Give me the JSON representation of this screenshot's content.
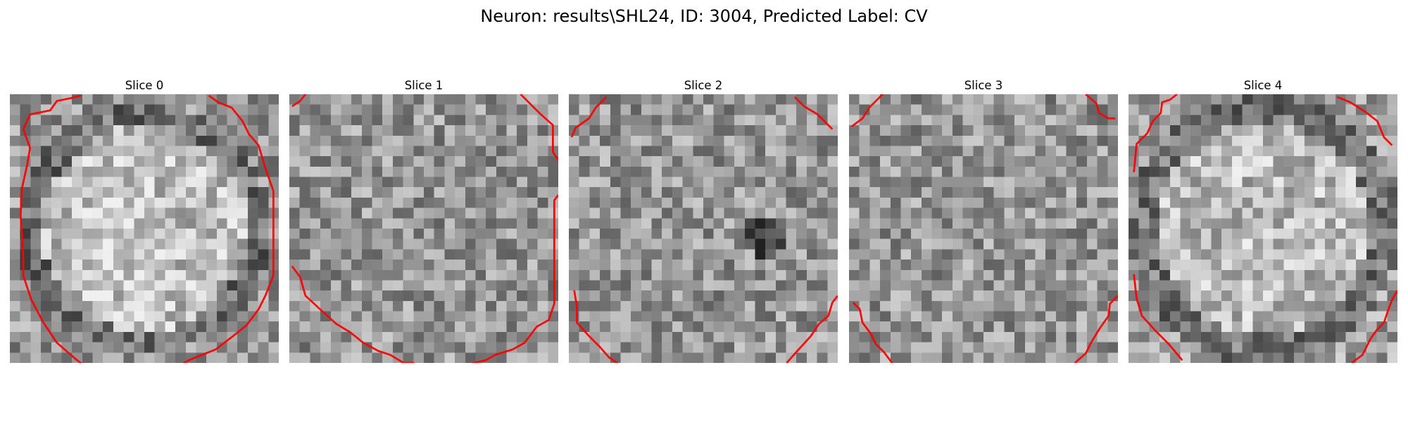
{
  "figure": {
    "title": "Neuron: results\\SHL24, ID: 3004, Predicted Label: CV"
  },
  "colors": {
    "contour": "#ff0000"
  },
  "panels": [
    {
      "title": "Slice 0",
      "seed": 11,
      "pattern": "ring",
      "contours": [
        [
          [
            1,
            2.6
          ],
          [
            1.5,
            1.5
          ],
          [
            3,
            1.2
          ],
          [
            3.5,
            0.5
          ],
          [
            4.5,
            0.3
          ],
          [
            5.3,
            0.1
          ]
        ],
        [
          [
            14.8,
            0.1
          ],
          [
            15.5,
            0.6
          ],
          [
            16.5,
            1
          ],
          [
            17.3,
            2
          ],
          [
            17.8,
            3
          ],
          [
            18.5,
            3.8
          ],
          [
            19,
            5.5
          ],
          [
            19.6,
            7.2
          ],
          [
            19.6,
            13.5
          ],
          [
            19,
            15
          ],
          [
            18.5,
            16
          ],
          [
            17.6,
            17.2
          ],
          [
            16.6,
            18
          ],
          [
            15.3,
            19
          ],
          [
            13.3,
            19.8
          ],
          [
            12,
            20.6
          ],
          [
            11,
            21.2
          ],
          [
            10,
            21.7
          ],
          [
            8,
            21.7
          ],
          [
            7,
            21.2
          ],
          [
            6,
            20.5
          ],
          [
            5,
            19.8
          ],
          [
            3.5,
            18.5
          ],
          [
            2.5,
            17
          ],
          [
            1.6,
            15.3
          ],
          [
            1,
            13.5
          ],
          [
            1,
            12
          ],
          [
            0.8,
            9
          ],
          [
            0.9,
            7
          ],
          [
            1.3,
            5.2
          ],
          [
            1.5,
            4
          ],
          [
            1,
            2.6
          ]
        ]
      ]
    },
    {
      "title": "Slice 1",
      "seed": 23,
      "pattern": "noise",
      "contours": [
        [
          [
            0.2,
            0.9
          ],
          [
            0.8,
            0.5
          ],
          [
            1.2,
            0
          ]
        ],
        [
          [
            17.2,
            0
          ],
          [
            18.6,
            1.4
          ],
          [
            19.6,
            2.3
          ],
          [
            19.6,
            4.3
          ],
          [
            20,
            4.9
          ]
        ],
        [
          [
            20,
            7.5
          ],
          [
            19.7,
            7.9
          ],
          [
            19.7,
            15.6
          ],
          [
            19.3,
            16.8
          ],
          [
            18.4,
            17.3
          ],
          [
            17.5,
            18.5
          ],
          [
            16.6,
            19
          ],
          [
            15.3,
            19.4
          ],
          [
            14.6,
            19.8
          ],
          [
            13.7,
            20
          ],
          [
            12.7,
            20.4
          ],
          [
            12,
            20.6
          ]
        ],
        [
          [
            0.2,
            12.8
          ],
          [
            0.8,
            13.6
          ],
          [
            1.2,
            15
          ],
          [
            2.5,
            16.2
          ],
          [
            3.5,
            17.1
          ],
          [
            4.5,
            17.7
          ],
          [
            5.5,
            18.5
          ],
          [
            6.6,
            19.1
          ],
          [
            7.5,
            19.4
          ],
          [
            8.5,
            20
          ],
          [
            9.2,
            20
          ],
          [
            10,
            20.4
          ],
          [
            10.5,
            20
          ]
        ]
      ]
    },
    {
      "title": "Slice 2",
      "seed": 37,
      "pattern": "spot",
      "contours": [
        [
          [
            0.2,
            3.2
          ],
          [
            0.5,
            2.5
          ],
          [
            1.5,
            1.8
          ],
          [
            2,
            1
          ],
          [
            2.8,
            0.2
          ]
        ],
        [
          [
            16.8,
            0.2
          ],
          [
            17.5,
            0.9
          ],
          [
            18.5,
            1.5
          ],
          [
            19,
            2
          ],
          [
            19.6,
            2.6
          ]
        ],
        [
          [
            0.4,
            14.6
          ],
          [
            0.6,
            15.8
          ],
          [
            0.6,
            17
          ],
          [
            1.5,
            18
          ],
          [
            2.3,
            18.8
          ],
          [
            3,
            19.6
          ],
          [
            3.6,
            20
          ]
        ],
        [
          [
            16.2,
            20
          ],
          [
            17,
            19.1
          ],
          [
            18,
            18
          ],
          [
            18.6,
            17.1
          ],
          [
            19.3,
            16.5
          ],
          [
            19.6,
            15.5
          ],
          [
            20,
            15
          ]
        ]
      ]
    },
    {
      "title": "Slice 3",
      "seed": 41,
      "pattern": "noise",
      "contours": [
        [
          [
            0.2,
            2.4
          ],
          [
            1,
            1.8
          ],
          [
            1.5,
            1
          ],
          [
            2,
            0.5
          ],
          [
            2.5,
            0
          ]
        ],
        [
          [
            17.6,
            0
          ],
          [
            18.4,
            0.7
          ],
          [
            18.6,
            1.4
          ],
          [
            19.3,
            1.8
          ],
          [
            19.8,
            1.8
          ]
        ],
        [
          [
            0.3,
            15.5
          ],
          [
            0.8,
            16
          ],
          [
            1,
            17
          ],
          [
            1.6,
            17.8
          ],
          [
            2,
            18.6
          ],
          [
            2.6,
            19.2
          ],
          [
            3.2,
            20
          ]
        ],
        [
          [
            16.8,
            20
          ],
          [
            17.6,
            19.3
          ],
          [
            18,
            18.5
          ],
          [
            18.6,
            17.5
          ],
          [
            19.3,
            16.5
          ],
          [
            19.4,
            15.6
          ],
          [
            20,
            15
          ]
        ]
      ]
    },
    {
      "title": "Slice 4",
      "seed": 53,
      "pattern": "ring2",
      "contours": [
        [
          [
            0.4,
            5.8
          ],
          [
            0.6,
            3.7
          ],
          [
            1.4,
            2.9
          ],
          [
            1.8,
            2
          ],
          [
            2.4,
            1.4
          ],
          [
            2.5,
            0.6
          ],
          [
            3.1,
            0.4
          ],
          [
            3.6,
            0
          ]
        ],
        [
          [
            15.5,
            0.2
          ],
          [
            16.5,
            0.6
          ],
          [
            17.6,
            1.3
          ],
          [
            18.5,
            2
          ],
          [
            19,
            3.2
          ],
          [
            19.6,
            3.8
          ]
        ],
        [
          [
            0.4,
            13.4
          ],
          [
            0.6,
            15.2
          ],
          [
            1,
            16.5
          ],
          [
            2,
            17.6
          ],
          [
            3,
            18.6
          ],
          [
            3.5,
            19.2
          ],
          [
            4,
            19.8
          ]
        ],
        [
          [
            16.6,
            20
          ],
          [
            17.4,
            19.4
          ],
          [
            18,
            18.2
          ],
          [
            18.5,
            17.5
          ],
          [
            19,
            17
          ],
          [
            19.3,
            16.1
          ],
          [
            19.6,
            15.3
          ],
          [
            20,
            14.6
          ]
        ]
      ]
    }
  ]
}
